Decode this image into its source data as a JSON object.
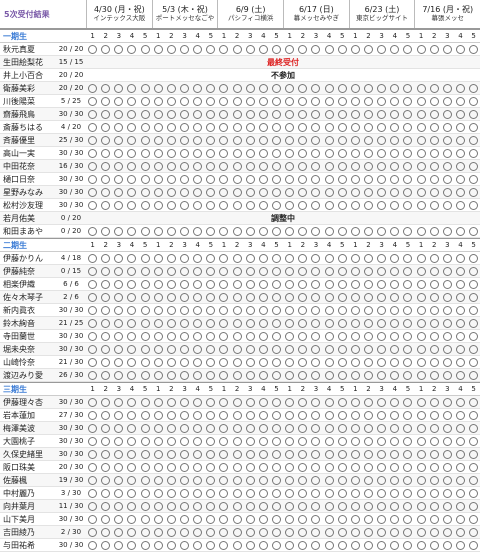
{
  "header": {
    "title": "5次受付結果",
    "events": [
      {
        "date": "4/30 (月・祝)",
        "venue": "インテックス大阪"
      },
      {
        "date": "5/3 (木・祝)",
        "venue": "ポートメッセなごや"
      },
      {
        "date": "6/9 (土)",
        "venue": "パシフィコ横浜"
      },
      {
        "date": "6/17 (日)",
        "venue": "幕メッセみやぎ"
      },
      {
        "date": "6/23 (土)",
        "venue": "東京ビッグサイト"
      },
      {
        "date": "7/16 (月・祝)",
        "venue": "幕張メッセ"
      }
    ]
  },
  "sections": [
    {
      "label": "一期生",
      "rows": [
        {
          "name": "秋元真夏",
          "count": "20 / 20"
        },
        {
          "name": "生田絵梨花",
          "count": "15 / 15",
          "status": "最終受付"
        },
        {
          "name": "井上小百合",
          "count": "20 / 20",
          "status": "不参加"
        },
        {
          "name": "衛藤美彩",
          "count": "20 / 20"
        },
        {
          "name": "川後陽菜",
          "count": "5 / 25"
        },
        {
          "name": "齋藤飛鳥",
          "count": "30 / 30"
        },
        {
          "name": "斎藤ちはる",
          "count": "4 / 20"
        },
        {
          "name": "斉藤優里",
          "count": "25 / 30"
        },
        {
          "name": "高山一実",
          "count": "30 / 30"
        },
        {
          "name": "中田花奈",
          "count": "16 / 30"
        },
        {
          "name": "樋口日奈",
          "count": "30 / 30"
        },
        {
          "name": "星野みなみ",
          "count": "30 / 30"
        },
        {
          "name": "松村沙友理",
          "count": "30 / 30"
        },
        {
          "name": "若月佑美",
          "count": "0 / 20",
          "status": "調整中"
        },
        {
          "name": "和田まあや",
          "count": "0 / 20"
        }
      ]
    },
    {
      "label": "二期生",
      "rows": [
        {
          "name": "伊藤かりん",
          "count": "4 / 18"
        },
        {
          "name": "伊藤純奈",
          "count": "0 / 15"
        },
        {
          "name": "相楽伊織",
          "count": "6 / 6"
        },
        {
          "name": "佐々木琴子",
          "count": "2 / 6"
        },
        {
          "name": "新内眞衣",
          "count": "30 / 30"
        },
        {
          "name": "鈴木絢音",
          "count": "21 / 25"
        },
        {
          "name": "寺田蘭世",
          "count": "30 / 30"
        },
        {
          "name": "堀未央奈",
          "count": "30 / 30"
        },
        {
          "name": "山崎怜奈",
          "count": "21 / 30"
        },
        {
          "name": "渡辺みり愛",
          "count": "26 / 30"
        }
      ]
    },
    {
      "label": "三期生",
      "rows": [
        {
          "name": "伊藤理々杏",
          "count": "30 / 30"
        },
        {
          "name": "岩本蓮加",
          "count": "27 / 30"
        },
        {
          "name": "梅澤美波",
          "count": "30 / 30"
        },
        {
          "name": "大園桃子",
          "count": "30 / 30"
        },
        {
          "name": "久保史緒里",
          "count": "30 / 30"
        },
        {
          "name": "阪口珠美",
          "count": "20 / 30"
        },
        {
          "name": "佐藤楓",
          "count": "19 / 30"
        },
        {
          "name": "中村麗乃",
          "count": "3 / 30"
        },
        {
          "name": "向井葉月",
          "count": "11 / 30"
        },
        {
          "name": "山下美月",
          "count": "30 / 30"
        },
        {
          "name": "吉田綾乃",
          "count": "2 / 30"
        },
        {
          "name": "与田祐希",
          "count": "30 / 30"
        }
      ]
    }
  ]
}
